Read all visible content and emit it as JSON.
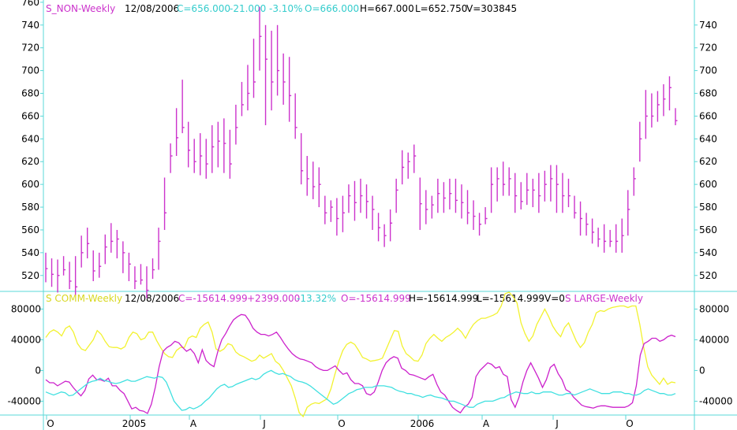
{
  "colors": {
    "frame": "#5ad8d8",
    "axis_text": "#000000",
    "price_bars": "#cc33cc",
    "comm_line": "#f2f230",
    "large_line": "#cc22cc",
    "non_line": "#40e0e0",
    "hdr_magenta": "#cc33cc",
    "hdr_cyan": "#33cccc",
    "hdr_yellow": "#d8d820",
    "hdr_black": "#000000"
  },
  "top_header": {
    "symbol": "S_NON-Weekly",
    "date": "12/08/2006",
    "close": "C=656.000",
    "change": "-21.000",
    "change_pct": "-3.10%",
    "open": "O=666.000",
    "high": "H=667.000",
    "low": "L=652.750",
    "volume": "V=303845"
  },
  "bottom_header": {
    "symbol": "S COMM-Weekly",
    "date": "12/08/2006",
    "close": "C=-15614.999",
    "change": "+2399.000",
    "change_pct": "-13.32%",
    "open": "O=-15614.999",
    "high": "H=-15614.999",
    "low": "L=-15614.999",
    "volume": "V=0",
    "series2": "S LARGE-Weekly"
  },
  "x_axis_labels": [
    "O",
    "2005",
    "A",
    "J",
    "O",
    "2006",
    "A",
    "J",
    "O"
  ],
  "chart_data": [
    {
      "type": "ohlc",
      "y_ticks_left": [
        520,
        540,
        560,
        580,
        600,
        620,
        640,
        660,
        680,
        700,
        720,
        740,
        760
      ],
      "y_ticks_right": [
        520,
        540,
        560,
        580,
        600,
        620,
        640,
        660,
        680,
        700,
        720,
        740
      ],
      "ylim": [
        506,
        762
      ],
      "bars": [
        [
          514,
          540,
          526
        ],
        [
          510,
          535,
          521
        ],
        [
          505,
          534,
          520
        ],
        [
          520,
          537,
          525
        ],
        [
          508,
          532,
          515
        ],
        [
          503,
          537,
          510
        ],
        [
          527,
          555,
          540
        ],
        [
          535,
          562,
          548
        ],
        [
          515,
          542,
          524
        ],
        [
          518,
          540,
          528
        ],
        [
          530,
          556,
          545
        ],
        [
          540,
          566,
          550
        ],
        [
          535,
          560,
          552
        ],
        [
          522,
          550,
          540
        ],
        [
          515,
          540,
          530
        ],
        [
          508,
          528,
          515
        ],
        [
          512,
          530,
          516
        ],
        [
          500,
          528,
          507
        ],
        [
          517,
          535,
          525
        ],
        [
          525,
          562,
          550
        ],
        [
          560,
          606,
          575
        ],
        [
          610,
          636,
          625
        ],
        [
          625,
          667,
          641
        ],
        [
          645,
          692,
          650
        ],
        [
          615,
          655,
          630
        ],
        [
          610,
          640,
          620
        ],
        [
          608,
          645,
          625
        ],
        [
          605,
          640,
          618
        ],
        [
          610,
          652,
          633
        ],
        [
          615,
          655,
          638
        ],
        [
          610,
          658,
          636
        ],
        [
          605,
          648,
          618
        ],
        [
          635,
          670,
          650
        ],
        [
          660,
          690,
          670
        ],
        [
          665,
          705,
          680
        ],
        [
          676,
          728,
          690
        ],
        [
          700,
          756,
          730
        ],
        [
          652,
          740,
          710
        ],
        [
          665,
          735,
          690
        ],
        [
          678,
          740,
          700
        ],
        [
          670,
          715,
          690
        ],
        [
          655,
          712,
          678
        ],
        [
          640,
          680,
          650
        ],
        [
          600,
          645,
          612
        ],
        [
          590,
          625,
          605
        ],
        [
          587,
          620,
          598
        ],
        [
          580,
          615,
          600
        ],
        [
          565,
          590,
          575
        ],
        [
          567,
          586,
          580
        ],
        [
          555,
          588,
          570
        ],
        [
          558,
          590,
          575
        ],
        [
          575,
          600,
          590
        ],
        [
          568,
          603,
          584
        ],
        [
          575,
          605,
          590
        ],
        [
          570,
          600,
          585
        ],
        [
          560,
          590,
          578
        ],
        [
          550,
          575,
          562
        ],
        [
          545,
          565,
          555
        ],
        [
          550,
          578,
          566
        ],
        [
          575,
          605,
          595
        ],
        [
          600,
          630,
          615
        ],
        [
          605,
          628,
          620
        ],
        [
          610,
          635,
          625
        ],
        [
          560,
          606,
          583
        ],
        [
          565,
          595,
          578
        ],
        [
          570,
          590,
          582
        ],
        [
          575,
          605,
          592
        ],
        [
          575,
          602,
          588
        ],
        [
          578,
          605,
          592
        ],
        [
          575,
          605,
          586
        ],
        [
          570,
          600,
          584
        ],
        [
          565,
          595,
          575
        ],
        [
          560,
          586,
          572
        ],
        [
          555,
          575,
          565
        ],
        [
          565,
          580,
          570
        ],
        [
          575,
          615,
          600
        ],
        [
          585,
          615,
          605
        ],
        [
          590,
          620,
          600
        ],
        [
          590,
          615,
          605
        ],
        [
          575,
          610,
          590
        ],
        [
          578,
          602,
          585
        ],
        [
          582,
          610,
          595
        ],
        [
          580,
          605,
          595
        ],
        [
          575,
          610,
          590
        ],
        [
          585,
          612,
          600
        ],
        [
          585,
          617,
          605
        ],
        [
          575,
          617,
          600
        ],
        [
          575,
          610,
          590
        ],
        [
          580,
          605,
          590
        ],
        [
          570,
          590,
          575
        ],
        [
          555,
          585,
          570
        ],
        [
          555,
          575,
          565
        ],
        [
          548,
          570,
          558
        ],
        [
          545,
          562,
          552
        ],
        [
          540,
          565,
          550
        ],
        [
          545,
          560,
          550
        ],
        [
          540,
          565,
          550
        ],
        [
          540,
          570,
          555
        ],
        [
          555,
          595,
          578
        ],
        [
          590,
          615,
          605
        ],
        [
          620,
          655,
          640
        ],
        [
          640,
          683,
          660
        ],
        [
          650,
          680,
          660
        ],
        [
          655,
          682,
          670
        ],
        [
          660,
          688,
          675
        ],
        [
          665,
          695,
          685
        ],
        [
          652,
          667,
          656
        ]
      ]
    },
    {
      "type": "line",
      "y_ticks": [
        -40000,
        0,
        40000,
        80000
      ],
      "ylim": [
        -58000,
        103000
      ],
      "series": [
        {
          "name": "S COMM-Weekly",
          "values": [
            43000,
            50000,
            53000,
            50000,
            45000,
            55000,
            58000,
            50000,
            35000,
            28000,
            26000,
            33000,
            40000,
            52000,
            47000,
            38000,
            31000,
            30000,
            30000,
            28000,
            31000,
            43000,
            50000,
            48000,
            40000,
            42000,
            50000,
            50000,
            39000,
            30000,
            22000,
            18000,
            17000,
            26000,
            30000,
            30000,
            42000,
            45000,
            43000,
            55000,
            60000,
            63000,
            50000,
            28000,
            25000,
            28000,
            35000,
            33000,
            24000,
            20000,
            18000,
            15000,
            12000,
            14000,
            20000,
            16000,
            19000,
            22000,
            12000,
            8000,
            0,
            -10000,
            -20000,
            -36000,
            -55000,
            -60000,
            -48000,
            -44000,
            -42000,
            -43000,
            -40000,
            -37000,
            -24000,
            -5000,
            12000,
            26000,
            34000,
            37000,
            34000,
            26000,
            17000,
            15000,
            12000,
            13000,
            14000,
            16000,
            28000,
            40000,
            52000,
            51000,
            32000,
            22000,
            18000,
            13000,
            12000,
            20000,
            35000,
            42000,
            47000,
            42000,
            38000,
            43000,
            46000,
            50000,
            55000,
            50000,
            42000,
            52000,
            60000,
            65000,
            68000,
            68000,
            70000,
            72000,
            75000,
            84000,
            100000,
            102000,
            96000,
            88000,
            62000,
            48000,
            38000,
            45000,
            60000,
            70000,
            80000,
            70000,
            58000,
            50000,
            44000,
            56000,
            62000,
            50000,
            38000,
            30000,
            36000,
            50000,
            60000,
            75000,
            78000,
            77000,
            80000,
            82000,
            83000,
            84000,
            84000,
            82000,
            84000,
            84000,
            60000,
            30000,
            5000,
            -6000,
            -12000,
            -18000,
            -10000,
            -18000,
            -15000,
            -16000
          ]
        },
        {
          "name": "S LARGE-Weekly",
          "values": [
            -12000,
            -16000,
            -16000,
            -20000,
            -17000,
            -14000,
            -15000,
            -22000,
            -28000,
            -33000,
            -26000,
            -11000,
            -6000,
            -12000,
            -12000,
            -14000,
            -10000,
            -20000,
            -20000,
            -26000,
            -30000,
            -40000,
            -50000,
            -48000,
            -52000,
            -53000,
            -56000,
            -44000,
            -22000,
            5000,
            25000,
            30000,
            33000,
            38000,
            36000,
            30000,
            25000,
            28000,
            22000,
            10000,
            27000,
            13000,
            8000,
            5000,
            25000,
            40000,
            48000,
            58000,
            66000,
            70000,
            73000,
            72000,
            65000,
            55000,
            50000,
            47000,
            47000,
            45000,
            47000,
            50000,
            43000,
            35000,
            28000,
            22000,
            18000,
            15000,
            14000,
            12000,
            10000,
            5000,
            2000,
            0,
            0,
            3000,
            6000,
            0,
            -5000,
            -3000,
            -12000,
            -17000,
            -17000,
            -20000,
            -30000,
            -32000,
            -28000,
            -15000,
            0,
            10000,
            15000,
            18000,
            16000,
            3000,
            0,
            -5000,
            -6000,
            -8000,
            -10000,
            -12000,
            -8000,
            -5000,
            -18000,
            -28000,
            -32000,
            -40000,
            -48000,
            -52000,
            -55000,
            -48000,
            -44000,
            -35000,
            -8000,
            0,
            5000,
            10000,
            8000,
            3000,
            5000,
            -5000,
            -8000,
            -38000,
            -48000,
            -35000,
            -15000,
            0,
            10000,
            0,
            -10000,
            -22000,
            -12000,
            4000,
            8000,
            -4000,
            -12000,
            -25000,
            -28000,
            -35000,
            -40000,
            -45000,
            -47000,
            -48000,
            -49000,
            -47000,
            -46000,
            -46000,
            -47000,
            -48000,
            -48000,
            -48000,
            -48000,
            -46000,
            -42000,
            -20000,
            20000,
            35000,
            38000,
            42000,
            42000,
            38000,
            40000,
            44000,
            46000,
            44000
          ]
        },
        {
          "name": "S NON-Weekly",
          "values": [
            -28000,
            -30000,
            -32000,
            -30000,
            -28000,
            -29000,
            -33000,
            -32000,
            -28000,
            -24000,
            -20000,
            -16000,
            -14000,
            -13000,
            -10000,
            -13000,
            -14000,
            -16000,
            -17000,
            -16000,
            -14000,
            -12000,
            -14000,
            -14000,
            -12000,
            -10000,
            -8000,
            -9000,
            -10000,
            -8000,
            -9000,
            -15000,
            -27000,
            -40000,
            -46000,
            -52000,
            -51000,
            -48000,
            -50000,
            -48000,
            -45000,
            -40000,
            -36000,
            -30000,
            -24000,
            -20000,
            -18000,
            -22000,
            -21000,
            -18000,
            -16000,
            -14000,
            -12000,
            -10000,
            -12000,
            -10000,
            -5000,
            -2000,
            0,
            -3000,
            -5000,
            -4000,
            -6000,
            -8000,
            -12000,
            -14000,
            -15000,
            -17000,
            -20000,
            -24000,
            -28000,
            -32000,
            -36000,
            -40000,
            -44000,
            -42000,
            -38000,
            -34000,
            -30000,
            -28000,
            -25000,
            -24000,
            -22000,
            -22000,
            -22000,
            -20000,
            -20000,
            -20000,
            -21000,
            -22000,
            -25000,
            -27000,
            -28000,
            -30000,
            -30000,
            -32000,
            -33000,
            -35000,
            -33000,
            -32000,
            -34000,
            -35000,
            -36000,
            -38000,
            -40000,
            -40000,
            -42000,
            -44000,
            -46000,
            -48000,
            -48000,
            -44000,
            -42000,
            -40000,
            -40000,
            -40000,
            -38000,
            -36000,
            -35000,
            -32000,
            -30000,
            -28000,
            -29000,
            -30000,
            -30000,
            -28000,
            -30000,
            -30000,
            -28000,
            -28000,
            -28000,
            -30000,
            -32000,
            -32000,
            -30000,
            -30000,
            -32000,
            -30000,
            -28000,
            -26000,
            -24000,
            -26000,
            -28000,
            -30000,
            -30000,
            -30000,
            -28000,
            -28000,
            -28000,
            -30000,
            -30000,
            -32000,
            -32000,
            -30000,
            -26000,
            -24000,
            -26000,
            -28000,
            -30000,
            -30000,
            -32000,
            -32000,
            -30000
          ]
        }
      ]
    }
  ]
}
